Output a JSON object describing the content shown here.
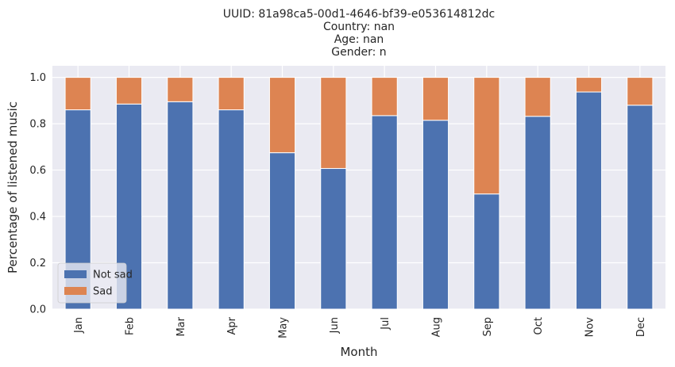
{
  "chart_data": {
    "type": "bar",
    "stacked": true,
    "title_lines": [
      "UUID: 81a98ca5-00d1-4646-bf39-e053614812dc",
      "Country: nan",
      "Age: nan",
      "Gender: n"
    ],
    "xlabel": "Month",
    "ylabel": "Percentage of listened music",
    "categories": [
      "Jan",
      "Feb",
      "Mar",
      "Apr",
      "May",
      "Jun",
      "Jul",
      "Aug",
      "Sep",
      "Oct",
      "Nov",
      "Dec"
    ],
    "series": [
      {
        "name": "Not sad",
        "color": "#4c72b0",
        "values": [
          0.86,
          0.885,
          0.895,
          0.86,
          0.675,
          0.607,
          0.835,
          0.815,
          0.497,
          0.832,
          0.937,
          0.88
        ]
      },
      {
        "name": "Sad",
        "color": "#dd8452",
        "values": [
          0.14,
          0.115,
          0.105,
          0.14,
          0.325,
          0.393,
          0.165,
          0.185,
          0.503,
          0.168,
          0.063,
          0.12
        ]
      }
    ],
    "ylim": [
      0,
      1.05
    ],
    "yticks": [
      "0.0",
      "0.2",
      "0.4",
      "0.6",
      "0.8",
      "1.0"
    ],
    "grid": true,
    "legend_position": "lower-left",
    "background_color": "#eaeaf2",
    "grid_color": "#ffffff"
  }
}
